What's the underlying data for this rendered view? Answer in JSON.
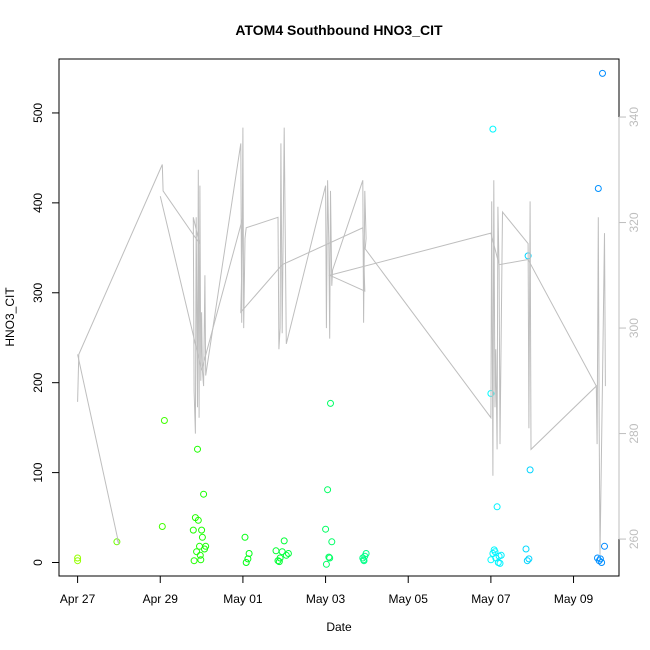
{
  "chart_data": {
    "type": "scatter",
    "title": "ATOM4 Southbound HNO3_CIT",
    "xlabel": "Date",
    "ylabel": "HNO3_CIT",
    "x_ticks": [
      {
        "day": 0,
        "label": "Apr 27"
      },
      {
        "day": 2,
        "label": "Apr 29"
      },
      {
        "day": 4,
        "label": "May 01"
      },
      {
        "day": 6,
        "label": "May 03"
      },
      {
        "day": 8,
        "label": "May 05"
      },
      {
        "day": 10,
        "label": "May 07"
      },
      {
        "day": 12,
        "label": "May 09"
      }
    ],
    "xlim": [
      -0.45,
      13.1
    ],
    "ylim": [
      -15,
      560
    ],
    "y_ticks": [
      0,
      100,
      200,
      300,
      400,
      500
    ],
    "y2lim": [
      253,
      351
    ],
    "y2_ticks": [
      260,
      280,
      300,
      320,
      340
    ],
    "colors": {
      "line": "#bebebe",
      "right_axis_text": "#bebebe"
    },
    "series": [
      {
        "axis": "left",
        "style": "points",
        "points": [
          [
            0.0,
            5
          ],
          [
            0.0,
            2
          ],
          [
            0.95,
            23
          ],
          [
            2.05,
            40
          ],
          [
            2.1,
            158
          ],
          [
            2.8,
            36
          ],
          [
            2.85,
            50
          ],
          [
            2.88,
            12
          ],
          [
            2.9,
            126
          ],
          [
            2.92,
            47
          ],
          [
            2.95,
            18
          ],
          [
            2.97,
            8
          ],
          [
            3.0,
            36
          ],
          [
            3.02,
            28
          ],
          [
            3.05,
            76
          ],
          [
            3.07,
            15
          ],
          [
            3.1,
            18
          ],
          [
            2.98,
            3
          ],
          [
            2.82,
            2
          ],
          [
            4.05,
            28
          ],
          [
            4.08,
            0
          ],
          [
            4.12,
            4
          ],
          [
            4.15,
            10
          ],
          [
            4.8,
            13
          ],
          [
            4.85,
            2
          ],
          [
            4.9,
            5
          ],
          [
            4.95,
            12
          ],
          [
            5.0,
            24
          ],
          [
            5.05,
            8
          ],
          [
            5.1,
            10
          ],
          [
            4.88,
            1
          ],
          [
            6.0,
            37
          ],
          [
            6.05,
            81
          ],
          [
            6.08,
            6
          ],
          [
            6.1,
            5
          ],
          [
            6.12,
            177
          ],
          [
            6.15,
            23
          ],
          [
            6.02,
            -2
          ],
          [
            6.9,
            5
          ],
          [
            6.92,
            3
          ],
          [
            6.95,
            7
          ],
          [
            6.98,
            10
          ],
          [
            6.93,
            2
          ],
          [
            10.0,
            188
          ],
          [
            10.05,
            482
          ],
          [
            10.1,
            12
          ],
          [
            10.12,
            5
          ],
          [
            10.15,
            62
          ],
          [
            10.18,
            0
          ],
          [
            10.0,
            3
          ],
          [
            10.05,
            10
          ],
          [
            10.08,
            14
          ],
          [
            10.2,
            7
          ],
          [
            10.25,
            8
          ],
          [
            10.22,
            -1
          ],
          [
            10.85,
            15
          ],
          [
            10.9,
            341
          ],
          [
            10.95,
            103
          ],
          [
            10.92,
            4
          ],
          [
            10.88,
            2
          ],
          [
            12.6,
            416
          ],
          [
            12.65,
            4
          ],
          [
            12.7,
            544
          ],
          [
            12.75,
            18
          ],
          [
            12.62,
            2
          ],
          [
            12.68,
            0
          ],
          [
            12.58,
            5
          ]
        ]
      },
      {
        "axis": "right",
        "style": "line",
        "points": [
          [
            0.0,
            286
          ],
          [
            0.03,
            295
          ],
          [
            2.05,
            331
          ],
          [
            2.07,
            326
          ],
          [
            2.95,
            316
          ],
          [
            2.8,
            321
          ],
          [
            2.82,
            288
          ],
          [
            2.85,
            280
          ],
          [
            2.87,
            321
          ],
          [
            2.9,
            285
          ],
          [
            2.92,
            330
          ],
          [
            2.94,
            283
          ],
          [
            2.96,
            327
          ],
          [
            2.98,
            290
          ],
          [
            3.0,
            303
          ],
          [
            3.02,
            292
          ],
          [
            3.05,
            289
          ],
          [
            3.08,
            310
          ],
          [
            3.1,
            291
          ],
          [
            3.95,
            335
          ],
          [
            3.97,
            301
          ],
          [
            4.0,
            338
          ],
          [
            4.02,
            300
          ],
          [
            4.05,
            317
          ],
          [
            4.08,
            319
          ],
          [
            4.85,
            321
          ],
          [
            4.87,
            296
          ],
          [
            4.9,
            300
          ],
          [
            4.92,
            335
          ],
          [
            4.95,
            299
          ],
          [
            5.0,
            338
          ],
          [
            5.05,
            297
          ],
          [
            6.0,
            327
          ],
          [
            6.02,
            300
          ],
          [
            6.05,
            328
          ],
          [
            6.08,
            315
          ],
          [
            6.1,
            298
          ],
          [
            6.12,
            326
          ],
          [
            6.15,
            308
          ],
          [
            6.17,
            311
          ],
          [
            6.9,
            328
          ],
          [
            6.92,
            301
          ],
          [
            6.95,
            326
          ],
          [
            6.98,
            317
          ],
          [
            6.96,
            315
          ],
          [
            10.0,
            283
          ],
          [
            10.02,
            324
          ],
          [
            10.05,
            272
          ],
          [
            10.07,
            328
          ],
          [
            10.1,
            285
          ],
          [
            10.12,
            296
          ],
          [
            10.15,
            277
          ],
          [
            10.17,
            323
          ],
          [
            10.2,
            311
          ],
          [
            10.22,
            278
          ],
          [
            10.28,
            322
          ],
          [
            10.9,
            316
          ],
          [
            10.92,
            281
          ],
          [
            10.95,
            324
          ],
          [
            10.97,
            277
          ],
          [
            12.55,
            289
          ],
          [
            12.57,
            278
          ],
          [
            12.6,
            321
          ],
          [
            12.62,
            281
          ],
          [
            12.64,
            257
          ],
          [
            12.7,
            290
          ],
          [
            12.75,
            318
          ],
          [
            12.77,
            289
          ]
        ]
      },
      {
        "axis": "right",
        "style": "line",
        "points": [
          [
            0.0,
            295
          ],
          [
            1.0,
            259
          ],
          [
            0.95,
            260
          ]
        ]
      },
      {
        "axis": "right",
        "style": "line",
        "points": [
          [
            2.0,
            325
          ],
          [
            3.0,
            292
          ],
          [
            4.0,
            321
          ],
          [
            3.95,
            303
          ],
          [
            4.95,
            312
          ],
          [
            6.9,
            319
          ],
          [
            6.95,
            307
          ],
          [
            6.1,
            310
          ],
          [
            10.0,
            318
          ],
          [
            10.2,
            312
          ],
          [
            10.9,
            313
          ],
          [
            12.55,
            289
          ]
        ]
      }
    ]
  }
}
